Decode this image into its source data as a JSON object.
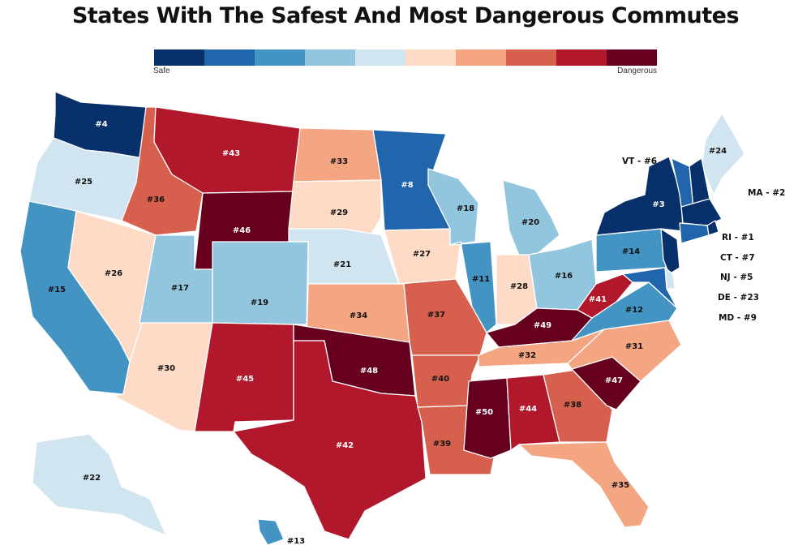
{
  "title": "States With The Safest And Most Dangerous Commutes",
  "legend": {
    "low_label": "Safe",
    "high_label": "Dangerous",
    "colors": [
      "#08306b",
      "#2166ac",
      "#4393c3",
      "#92c5de",
      "#d1e5f0",
      "#fddbc7",
      "#f4a582",
      "#d6604d",
      "#b2182b",
      "#67001f"
    ]
  },
  "states": [
    {
      "id": "WA",
      "rank": "#4",
      "bin": 0
    },
    {
      "id": "OR",
      "rank": "#25",
      "bin": 4
    },
    {
      "id": "CA",
      "rank": "#15",
      "bin": 2
    },
    {
      "id": "NV",
      "rank": "#26",
      "bin": 5
    },
    {
      "id": "ID",
      "rank": "#36",
      "bin": 7
    },
    {
      "id": "MT",
      "rank": "#43",
      "bin": 8
    },
    {
      "id": "WY",
      "rank": "#46",
      "bin": 9
    },
    {
      "id": "UT",
      "rank": "#17",
      "bin": 3
    },
    {
      "id": "CO",
      "rank": "#19",
      "bin": 3
    },
    {
      "id": "AZ",
      "rank": "#30",
      "bin": 5
    },
    {
      "id": "NM",
      "rank": "#45",
      "bin": 8
    },
    {
      "id": "ND",
      "rank": "#33",
      "bin": 6
    },
    {
      "id": "SD",
      "rank": "#29",
      "bin": 5
    },
    {
      "id": "NE",
      "rank": "#21",
      "bin": 4
    },
    {
      "id": "KS",
      "rank": "#34",
      "bin": 6
    },
    {
      "id": "OK",
      "rank": "#48",
      "bin": 9
    },
    {
      "id": "TX",
      "rank": "#42",
      "bin": 8
    },
    {
      "id": "MN",
      "rank": "#8",
      "bin": 1
    },
    {
      "id": "IA",
      "rank": "#27",
      "bin": 5
    },
    {
      "id": "MO",
      "rank": "#37",
      "bin": 7
    },
    {
      "id": "AR",
      "rank": "#40",
      "bin": 7
    },
    {
      "id": "LA",
      "rank": "#39",
      "bin": 7
    },
    {
      "id": "WI",
      "rank": "#18",
      "bin": 3
    },
    {
      "id": "IL",
      "rank": "#11",
      "bin": 2
    },
    {
      "id": "MI",
      "rank": "#20",
      "bin": 3
    },
    {
      "id": "IN",
      "rank": "#28",
      "bin": 5
    },
    {
      "id": "OH",
      "rank": "#16",
      "bin": 3
    },
    {
      "id": "KY",
      "rank": "#49",
      "bin": 9
    },
    {
      "id": "TN",
      "rank": "#32",
      "bin": 6
    },
    {
      "id": "MS",
      "rank": "#50",
      "bin": 9
    },
    {
      "id": "AL",
      "rank": "#44",
      "bin": 8
    },
    {
      "id": "GA",
      "rank": "#38",
      "bin": 7
    },
    {
      "id": "FL",
      "rank": "#35",
      "bin": 6
    },
    {
      "id": "SC",
      "rank": "#47",
      "bin": 9
    },
    {
      "id": "NC",
      "rank": "#31",
      "bin": 6
    },
    {
      "id": "VA",
      "rank": "#12",
      "bin": 2
    },
    {
      "id": "WV",
      "rank": "#41",
      "bin": 8
    },
    {
      "id": "PA",
      "rank": "#14",
      "bin": 2
    },
    {
      "id": "NY",
      "rank": "#3",
      "bin": 0
    },
    {
      "id": "ME",
      "rank": "#24",
      "bin": 4
    },
    {
      "id": "NH",
      "rank": "",
      "bin": 0
    },
    {
      "id": "VT",
      "rank": "",
      "bin": 1
    },
    {
      "id": "MA",
      "rank": "",
      "bin": 0
    },
    {
      "id": "RI",
      "rank": "",
      "bin": 0
    },
    {
      "id": "CT",
      "rank": "",
      "bin": 1
    },
    {
      "id": "NJ",
      "rank": "",
      "bin": 0
    },
    {
      "id": "DE",
      "rank": "",
      "bin": 4
    },
    {
      "id": "MD",
      "rank": "",
      "bin": 1
    },
    {
      "id": "AK",
      "rank": "#22",
      "bin": 4
    },
    {
      "id": "HI",
      "rank": "#13",
      "bin": 2
    }
  ],
  "callouts": {
    "VT": "VT - #6",
    "MA": "MA - #2",
    "RI": "RI - #1",
    "CT": "CT - #7",
    "NJ": "NJ - #5",
    "DE": "DE - #23",
    "MD": "MD - #9"
  }
}
